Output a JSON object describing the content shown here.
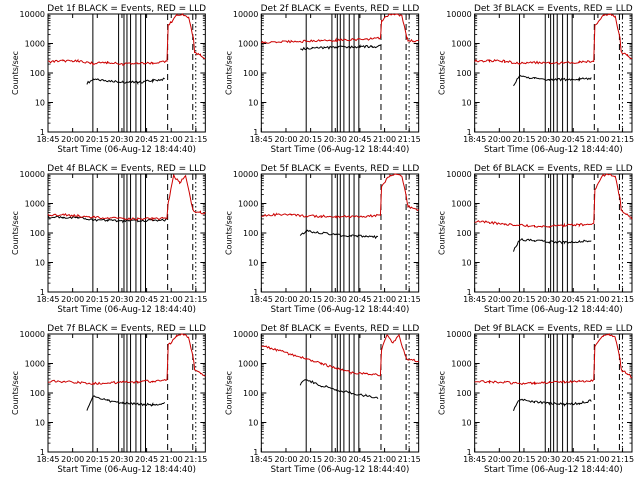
{
  "figure": {
    "title_template": "Det {n}f BLACK = Events, RED = LLD",
    "xlabel": "Start Time (06-Aug-12 18:44:40)",
    "ylabel": "Counts/sec",
    "colors": {
      "events": "#000000",
      "lld": "#cc0000",
      "axes": "#000000"
    }
  },
  "chart_data": [
    {
      "type": "line",
      "title": "Det 1f BLACK = Events, RED = LLD",
      "xlabel": "Start Time (06-Aug-12 18:44:40)",
      "ylabel": "Counts/sec",
      "xticks": [
        "18:45",
        "20:00",
        "20:15",
        "20:30",
        "20:45",
        "21:00",
        "21:15"
      ],
      "xlim": [
        18.75,
        21.38
      ],
      "ylim": [
        1,
        10000
      ],
      "yscale": "log",
      "yticks": [
        "1",
        "10",
        "100",
        "1000",
        "10000"
      ],
      "series": [
        {
          "name": "Events",
          "color": "#000000",
          "x": [
            19.4,
            19.5,
            19.75,
            20.0,
            20.25,
            20.5,
            20.7
          ],
          "y": [
            45,
            60,
            55,
            50,
            48,
            55,
            62
          ]
        },
        {
          "name": "LLD",
          "color": "#cc0000",
          "x": [
            18.75,
            19.0,
            19.25,
            19.5,
            19.75,
            20.0,
            20.25,
            20.5,
            20.74,
            20.76,
            20.9,
            21.0,
            21.1,
            21.18,
            21.2,
            21.3,
            21.38
          ],
          "y": [
            240,
            260,
            250,
            210,
            230,
            200,
            210,
            220,
            250,
            4000,
            9000,
            10000,
            8000,
            1500,
            500,
            400,
            300
          ]
        }
      ],
      "markers_dashed": [
        20.75,
        21.17
      ],
      "markers_dotted": [
        21.22
      ],
      "markers_solid": [
        19.5,
        19.93,
        20.02,
        20.07,
        20.13,
        20.22,
        20.3,
        20.38
      ]
    },
    {
      "type": "line",
      "title": "Det 2f BLACK = Events, RED = LLD",
      "xlabel": "Start Time (06-Aug-12 18:44:40)",
      "ylabel": "Counts/sec",
      "xticks": [
        "18:45",
        "20:00",
        "20:15",
        "20:30",
        "20:45",
        "21:00",
        "21:15"
      ],
      "xlim": [
        18.75,
        21.38
      ],
      "ylim": [
        1,
        10000
      ],
      "yscale": "log",
      "yticks": [
        "1",
        "10",
        "100",
        "1000",
        "10000"
      ],
      "series": [
        {
          "name": "Events",
          "color": "#000000",
          "x": [
            19.4,
            19.6,
            19.8,
            20.0,
            20.2,
            20.4,
            20.6,
            20.74
          ],
          "y": [
            650,
            700,
            720,
            740,
            760,
            780,
            790,
            800
          ]
        },
        {
          "name": "LLD",
          "color": "#cc0000",
          "x": [
            18.75,
            19.0,
            19.25,
            19.5,
            19.75,
            20.0,
            20.25,
            20.5,
            20.74,
            20.76,
            20.9,
            21.0,
            21.1,
            21.18,
            21.2,
            21.3,
            21.38
          ],
          "y": [
            1100,
            1100,
            1150,
            1200,
            1250,
            1300,
            1350,
            1400,
            1500,
            6000,
            10000,
            10000,
            9000,
            1600,
            1300,
            1250,
            1200
          ]
        }
      ],
      "markers_dashed": [
        20.75,
        21.17
      ],
      "markers_dotted": [
        21.22
      ],
      "markers_solid": [
        19.5,
        19.93,
        20.02,
        20.07,
        20.13,
        20.22,
        20.3,
        20.38
      ]
    },
    {
      "type": "line",
      "title": "Det 3f BLACK = Events, RED = LLD",
      "xlabel": "Start Time (06-Aug-12 18:44:40)",
      "ylabel": "Counts/sec",
      "xticks": [
        "18:45",
        "20:00",
        "20:15",
        "20:30",
        "20:45",
        "21:00",
        "21:15"
      ],
      "xlim": [
        18.75,
        21.38
      ],
      "ylim": [
        1,
        10000
      ],
      "yscale": "log",
      "yticks": [
        "1",
        "10",
        "100",
        "1000",
        "10000"
      ],
      "series": [
        {
          "name": "Events",
          "color": "#000000",
          "x": [
            19.4,
            19.5,
            19.75,
            20.0,
            20.25,
            20.5,
            20.7
          ],
          "y": [
            40,
            80,
            65,
            60,
            60,
            62,
            65
          ]
        },
        {
          "name": "LLD",
          "color": "#cc0000",
          "x": [
            18.75,
            19.0,
            19.25,
            19.5,
            19.75,
            20.0,
            20.25,
            20.5,
            20.74,
            20.76,
            20.9,
            21.0,
            21.1,
            21.18,
            21.2,
            21.3,
            21.38
          ],
          "y": [
            250,
            260,
            250,
            210,
            230,
            220,
            220,
            230,
            250,
            4000,
            9000,
            10000,
            8000,
            1500,
            500,
            400,
            320
          ]
        }
      ],
      "markers_dashed": [
        20.75,
        21.17
      ],
      "markers_dotted": [
        21.22
      ],
      "markers_solid": [
        19.5,
        19.93,
        20.02,
        20.07,
        20.13,
        20.22,
        20.3,
        20.38
      ]
    },
    {
      "type": "line",
      "title": "Det 4f BLACK = Events, RED = LLD",
      "xlabel": "Start Time (06-Aug-12 18:44:40)",
      "ylabel": "Counts/sec",
      "xticks": [
        "18:45",
        "20:00",
        "20:15",
        "20:30",
        "20:45",
        "21:00",
        "21:15"
      ],
      "xlim": [
        18.75,
        21.38
      ],
      "ylim": [
        1,
        10000
      ],
      "yscale": "log",
      "yticks": [
        "1",
        "10",
        "100",
        "1000",
        "10000"
      ],
      "series": [
        {
          "name": "Events",
          "color": "#000000",
          "x": [
            18.75,
            19.0,
            19.25,
            19.5,
            19.75,
            20.0,
            20.25,
            20.5,
            20.74
          ],
          "y": [
            350,
            340,
            320,
            280,
            270,
            260,
            260,
            270,
            280
          ]
        },
        {
          "name": "LLD",
          "color": "#cc0000",
          "x": [
            18.75,
            19.0,
            19.25,
            19.5,
            19.75,
            20.0,
            20.25,
            20.5,
            20.74,
            20.76,
            20.85,
            20.95,
            21.05,
            21.15,
            21.18,
            21.2,
            21.3,
            21.38
          ],
          "y": [
            400,
            420,
            380,
            340,
            320,
            310,
            300,
            310,
            320,
            1000,
            9000,
            5000,
            9000,
            900,
            600,
            550,
            500,
            480
          ]
        }
      ],
      "markers_dashed": [
        20.75,
        21.17
      ],
      "markers_dotted": [
        21.22
      ],
      "markers_solid": [
        19.5,
        19.93,
        20.02,
        20.07,
        20.13,
        20.22,
        20.3,
        20.38
      ]
    },
    {
      "type": "line",
      "title": "Det 5f BLACK = Events, RED = LLD",
      "xlabel": "Start Time (06-Aug-12 18:44:40)",
      "ylabel": "Counts/sec",
      "xticks": [
        "18:45",
        "20:00",
        "20:15",
        "20:30",
        "20:45",
        "21:00",
        "21:15"
      ],
      "xlim": [
        18.75,
        21.38
      ],
      "ylim": [
        1,
        10000
      ],
      "yscale": "log",
      "yticks": [
        "1",
        "10",
        "100",
        "1000",
        "10000"
      ],
      "series": [
        {
          "name": "Events",
          "color": "#000000",
          "x": [
            19.4,
            19.5,
            19.75,
            20.0,
            20.25,
            20.5,
            20.7
          ],
          "y": [
            80,
            120,
            100,
            85,
            80,
            75,
            72
          ]
        },
        {
          "name": "LLD",
          "color": "#cc0000",
          "x": [
            18.75,
            19.0,
            19.25,
            19.5,
            19.75,
            20.0,
            20.25,
            20.5,
            20.74,
            20.76,
            20.9,
            21.0,
            21.1,
            21.18,
            21.2,
            21.3,
            21.38
          ],
          "y": [
            400,
            420,
            410,
            380,
            370,
            360,
            360,
            370,
            400,
            4000,
            9000,
            10000,
            8000,
            1500,
            800,
            700,
            600
          ]
        }
      ],
      "markers_dashed": [
        20.75,
        21.17
      ],
      "markers_dotted": [
        21.22
      ],
      "markers_solid": [
        19.5,
        19.93,
        20.02,
        20.07,
        20.13,
        20.22,
        20.3,
        20.38
      ]
    },
    {
      "type": "line",
      "title": "Det 6f BLACK = Events, RED = LLD",
      "xlabel": "Start Time (06-Aug-12 18:44:40)",
      "ylabel": "Counts/sec",
      "xticks": [
        "18:45",
        "20:00",
        "20:15",
        "20:30",
        "20:45",
        "21:00",
        "21:15"
      ],
      "xlim": [
        18.75,
        21.38
      ],
      "ylim": [
        1,
        10000
      ],
      "yscale": "log",
      "yticks": [
        "1",
        "10",
        "100",
        "1000",
        "10000"
      ],
      "series": [
        {
          "name": "Events",
          "color": "#000000",
          "x": [
            19.4,
            19.5,
            19.75,
            20.0,
            20.25,
            20.5,
            20.7
          ],
          "y": [
            25,
            60,
            55,
            50,
            48,
            50,
            55
          ]
        },
        {
          "name": "LLD",
          "color": "#cc0000",
          "x": [
            18.75,
            19.0,
            19.25,
            19.5,
            19.75,
            20.0,
            20.25,
            20.5,
            20.74,
            20.76,
            20.9,
            21.0,
            21.1,
            21.18,
            21.2,
            21.3,
            21.38
          ],
          "y": [
            250,
            230,
            200,
            180,
            170,
            170,
            180,
            190,
            200,
            3000,
            9000,
            10000,
            8000,
            1500,
            600,
            400,
            300
          ]
        }
      ],
      "markers_dashed": [
        20.75,
        21.17
      ],
      "markers_dotted": [
        21.22
      ],
      "markers_solid": [
        19.5,
        19.93,
        20.02,
        20.07,
        20.13,
        20.22,
        20.3,
        20.38
      ]
    },
    {
      "type": "line",
      "title": "Det 7f BLACK = Events, RED = LLD",
      "xlabel": "Start Time (06-Aug-12 18:44:40)",
      "ylabel": "Counts/sec",
      "xticks": [
        "18:45",
        "20:00",
        "20:15",
        "20:30",
        "20:45",
        "21:00",
        "21:15"
      ],
      "xlim": [
        18.75,
        21.38
      ],
      "ylim": [
        1,
        10000
      ],
      "yscale": "log",
      "yticks": [
        "1",
        "10",
        "100",
        "1000",
        "10000"
      ],
      "series": [
        {
          "name": "Events",
          "color": "#000000",
          "x": [
            19.4,
            19.5,
            19.75,
            20.0,
            20.25,
            20.5,
            20.7
          ],
          "y": [
            25,
            80,
            55,
            45,
            42,
            40,
            45
          ]
        },
        {
          "name": "LLD",
          "color": "#cc0000",
          "x": [
            18.75,
            19.0,
            19.25,
            19.5,
            19.75,
            20.0,
            20.25,
            20.5,
            20.74,
            20.76,
            20.9,
            21.0,
            21.1,
            21.18,
            21.2,
            21.3,
            21.38
          ],
          "y": [
            250,
            240,
            230,
            210,
            220,
            230,
            240,
            250,
            270,
            4000,
            9000,
            10000,
            8000,
            1500,
            600,
            450,
            350
          ]
        }
      ],
      "markers_dashed": [
        20.75,
        21.17
      ],
      "markers_dotted": [
        21.22
      ],
      "markers_solid": [
        19.5,
        19.93,
        20.02,
        20.07,
        20.13,
        20.22,
        20.3,
        20.38
      ]
    },
    {
      "type": "line",
      "title": "Det 8f BLACK = Events, RED = LLD",
      "xlabel": "Start Time (06-Aug-12 18:44:40)",
      "ylabel": "Counts/sec",
      "xticks": [
        "18:45",
        "20:00",
        "20:15",
        "20:30",
        "20:45",
        "21:00",
        "21:15"
      ],
      "xlim": [
        18.75,
        21.38
      ],
      "ylim": [
        1,
        10000
      ],
      "yscale": "log",
      "yticks": [
        "1",
        "10",
        "100",
        "1000",
        "10000"
      ],
      "series": [
        {
          "name": "Events",
          "color": "#000000",
          "x": [
            19.4,
            19.5,
            19.75,
            20.0,
            20.25,
            20.5,
            20.7
          ],
          "y": [
            200,
            280,
            180,
            130,
            100,
            80,
            70
          ]
        },
        {
          "name": "LLD",
          "color": "#cc0000",
          "x": [
            18.75,
            19.0,
            19.25,
            19.5,
            19.75,
            20.0,
            20.25,
            20.5,
            20.74,
            20.76,
            20.85,
            20.95,
            21.05,
            21.15,
            21.18,
            21.2,
            21.3,
            21.38
          ],
          "y": [
            4000,
            3000,
            2000,
            1500,
            1000,
            700,
            500,
            450,
            400,
            3000,
            9000,
            5000,
            9000,
            2000,
            1500,
            1400,
            1300,
            1200
          ]
        }
      ],
      "markers_dashed": [
        20.75,
        21.17
      ],
      "markers_dotted": [
        21.22
      ],
      "markers_solid": [
        19.5,
        19.93,
        20.02,
        20.07,
        20.13,
        20.22,
        20.3,
        20.38
      ]
    },
    {
      "type": "line",
      "title": "Det 9f BLACK = Events, RED = LLD",
      "xlabel": "Start Time (06-Aug-12 18:44:40)",
      "ylabel": "Counts/sec",
      "xticks": [
        "18:45",
        "20:00",
        "20:15",
        "20:30",
        "20:45",
        "21:00",
        "21:15"
      ],
      "xlim": [
        18.75,
        21.38
      ],
      "ylim": [
        1,
        10000
      ],
      "yscale": "log",
      "yticks": [
        "1",
        "10",
        "100",
        "1000",
        "10000"
      ],
      "series": [
        {
          "name": "Events",
          "color": "#000000",
          "x": [
            19.4,
            19.5,
            19.75,
            20.0,
            20.25,
            20.5,
            20.7
          ],
          "y": [
            25,
            60,
            50,
            45,
            42,
            45,
            55
          ]
        },
        {
          "name": "LLD",
          "color": "#cc0000",
          "x": [
            18.75,
            19.0,
            19.25,
            19.5,
            19.75,
            20.0,
            20.25,
            20.5,
            20.74,
            20.76,
            20.9,
            21.0,
            21.1,
            21.18,
            21.2,
            21.3,
            21.38
          ],
          "y": [
            250,
            240,
            230,
            210,
            220,
            230,
            240,
            250,
            270,
            4000,
            9000,
            10000,
            8000,
            1500,
            600,
            450,
            350
          ]
        }
      ],
      "markers_dashed": [
        20.75,
        21.17
      ],
      "markers_dotted": [
        21.22
      ],
      "markers_solid": [
        19.5,
        19.93,
        20.02,
        20.07,
        20.13,
        20.22,
        20.3,
        20.38
      ]
    }
  ]
}
